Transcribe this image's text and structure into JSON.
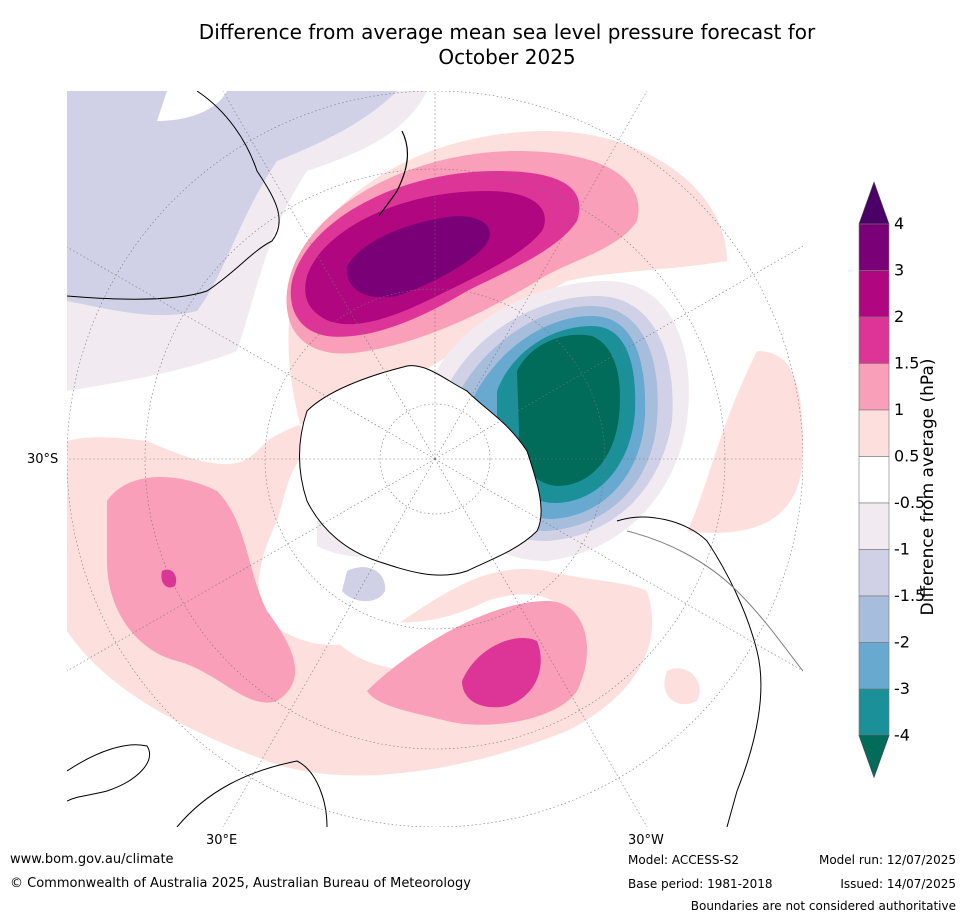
{
  "title_line1": "Difference from average mean sea level pressure forecast for",
  "title_line2": "October 2025",
  "map": {
    "lat_labels": [
      "30°S"
    ],
    "lon_labels": [
      "30°E",
      "30°W"
    ]
  },
  "colorbar": {
    "title": "Difference from average (hPa)",
    "tick_labels": [
      "4",
      "3",
      "2",
      "1.5",
      "1",
      "0.5",
      "-0.5",
      "-1",
      "-1.5",
      "-2",
      "-3",
      "-4"
    ],
    "colors": [
      "#4a0066",
      "#7a0077",
      "#b0067f",
      "#dd3497",
      "#f99fb9",
      "#fde0dd",
      "#ffffff",
      "#f1ebf1",
      "#d0d1e6",
      "#a6bddb",
      "#67a9cf",
      "#1c9099",
      "#016c59"
    ]
  },
  "footer": {
    "website": "www.bom.gov.au/climate",
    "copyright": "© Commonwealth of Australia 2025, Australian Bureau of Meteorology",
    "model": "Model: ACCESS-S2",
    "base_period": "Base period: 1981-2018",
    "model_run": "Model run: 12/07/2025",
    "issued": "Issued: 14/07/2025",
    "disclaimer": "Boundaries are not considered authoritative"
  }
}
